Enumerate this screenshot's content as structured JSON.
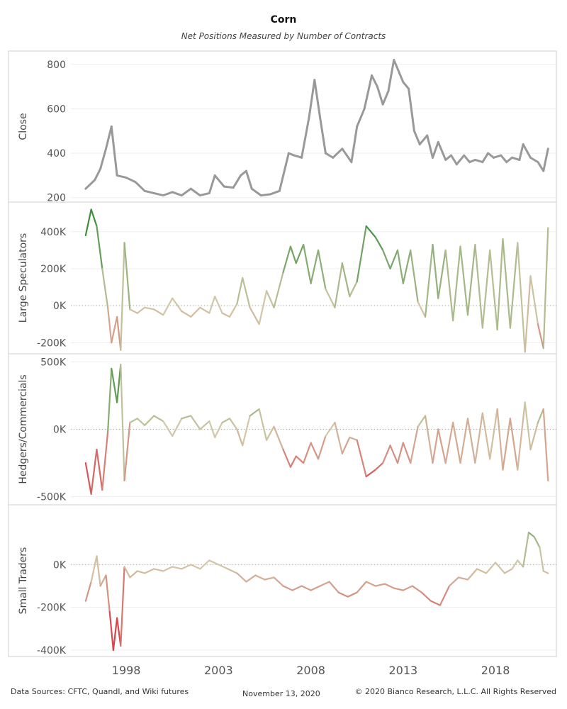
{
  "title": "Corn",
  "subtitle": "Net Positions Measured by Number of Contracts",
  "footer": {
    "sources": "Data Sources: CFTC, Quandl, and Wiki futures",
    "date": "November 13, 2020",
    "copyright": "© 2020 Bianco Research, L.L.C. All Rights Reserved"
  },
  "colors": {
    "close": "#999999",
    "positive": "#3d8f3d",
    "negative": "#d9414a",
    "neutral": "#d2c9a8",
    "grid": "#eeeeee"
  },
  "chart_data": [
    {
      "type": "line",
      "ylabel": "Close",
      "ylim": [
        180,
        860
      ],
      "yticks": [
        200,
        400,
        600,
        800
      ],
      "ytick_labels": [
        "200",
        "400",
        "600",
        "800"
      ],
      "zero_line": false,
      "color_mode": "solid",
      "x": [
        1995.8,
        1996.3,
        1996.6,
        1996.9,
        1997.2,
        1997.5,
        1998.0,
        1998.5,
        1999.0,
        1999.5,
        2000.0,
        2000.5,
        2001.0,
        2001.5,
        2002.0,
        2002.5,
        2002.8,
        2003.3,
        2003.8,
        2004.2,
        2004.5,
        2004.8,
        2005.3,
        2005.8,
        2006.3,
        2006.8,
        2007.1,
        2007.5,
        2007.9,
        2008.2,
        2008.5,
        2008.8,
        2009.2,
        2009.7,
        2010.2,
        2010.5,
        2010.9,
        2011.3,
        2011.6,
        2011.9,
        2012.2,
        2012.5,
        2012.8,
        2013.0,
        2013.3,
        2013.6,
        2013.9,
        2014.3,
        2014.6,
        2014.9,
        2015.3,
        2015.6,
        2015.9,
        2016.3,
        2016.6,
        2016.9,
        2017.3,
        2017.6,
        2017.9,
        2018.3,
        2018.6,
        2018.9,
        2019.3,
        2019.5,
        2019.9,
        2020.3,
        2020.6,
        2020.85
      ],
      "y": [
        240,
        280,
        330,
        420,
        520,
        300,
        290,
        270,
        230,
        220,
        210,
        225,
        210,
        240,
        210,
        220,
        300,
        250,
        245,
        300,
        320,
        240,
        210,
        215,
        230,
        400,
        390,
        380,
        560,
        730,
        560,
        400,
        380,
        420,
        360,
        520,
        600,
        750,
        700,
        620,
        680,
        820,
        760,
        720,
        690,
        500,
        440,
        480,
        380,
        450,
        370,
        390,
        350,
        390,
        360,
        370,
        360,
        400,
        380,
        390,
        360,
        380,
        370,
        440,
        380,
        360,
        320,
        420
      ]
    },
    {
      "type": "line",
      "ylabel": "Large Speculators",
      "ylim": [
        -260000,
        560000
      ],
      "yticks": [
        -200000,
        0,
        200000,
        400000
      ],
      "ytick_labels": [
        "-200K",
        "0K",
        "200K",
        "400K"
      ],
      "zero_line": true,
      "color_mode": "diverging",
      "x": [
        1995.8,
        1996.1,
        1996.4,
        1996.7,
        1997.0,
        1997.2,
        1997.5,
        1997.7,
        1997.9,
        1998.2,
        1998.6,
        1999.0,
        1999.5,
        2000.0,
        2000.5,
        2001.0,
        2001.5,
        2002.0,
        2002.5,
        2002.8,
        2003.2,
        2003.6,
        2004.0,
        2004.3,
        2004.7,
        2005.2,
        2005.6,
        2006.0,
        2006.5,
        2006.9,
        2007.2,
        2007.6,
        2008.0,
        2008.4,
        2008.8,
        2009.3,
        2009.7,
        2010.1,
        2010.5,
        2011.0,
        2011.5,
        2011.9,
        2012.3,
        2012.7,
        2013.0,
        2013.4,
        2013.8,
        2014.2,
        2014.6,
        2014.9,
        2015.3,
        2015.7,
        2016.1,
        2016.5,
        2016.9,
        2017.3,
        2017.7,
        2018.1,
        2018.4,
        2018.8,
        2019.2,
        2019.6,
        2019.9,
        2020.3,
        2020.6,
        2020.85
      ],
      "y": [
        380000,
        520000,
        430000,
        200000,
        -10000,
        -200000,
        -60000,
        -240000,
        340000,
        -20000,
        -40000,
        -10000,
        -20000,
        -50000,
        40000,
        -30000,
        -60000,
        -10000,
        -40000,
        50000,
        -40000,
        -60000,
        10000,
        150000,
        -10000,
        -100000,
        80000,
        -10000,
        180000,
        320000,
        230000,
        330000,
        120000,
        300000,
        90000,
        -10000,
        230000,
        50000,
        130000,
        430000,
        370000,
        300000,
        200000,
        300000,
        120000,
        300000,
        20000,
        -60000,
        330000,
        40000,
        300000,
        -80000,
        320000,
        -50000,
        330000,
        -120000,
        300000,
        -130000,
        360000,
        -120000,
        340000,
        -250000,
        160000,
        -100000,
        -230000,
        420000
      ]
    },
    {
      "type": "line",
      "ylabel": "Hedgers/Commercials",
      "ylim": [
        -560000,
        560000
      ],
      "yticks": [
        -500000,
        0,
        500000
      ],
      "ytick_labels": [
        "-500K",
        "0K",
        "500K"
      ],
      "zero_line": true,
      "color_mode": "diverging",
      "x": [
        1995.8,
        1996.1,
        1996.4,
        1996.7,
        1997.0,
        1997.2,
        1997.5,
        1997.7,
        1997.9,
        1998.2,
        1998.6,
        1999.0,
        1999.5,
        2000.0,
        2000.5,
        2001.0,
        2001.5,
        2002.0,
        2002.5,
        2002.8,
        2003.2,
        2003.6,
        2004.0,
        2004.3,
        2004.7,
        2005.2,
        2005.6,
        2006.0,
        2006.5,
        2006.9,
        2007.2,
        2007.6,
        2008.0,
        2008.4,
        2008.8,
        2009.3,
        2009.7,
        2010.1,
        2010.5,
        2011.0,
        2011.5,
        2011.9,
        2012.3,
        2012.7,
        2013.0,
        2013.4,
        2013.8,
        2014.2,
        2014.6,
        2014.9,
        2015.3,
        2015.7,
        2016.1,
        2016.5,
        2016.9,
        2017.3,
        2017.7,
        2018.1,
        2018.4,
        2018.8,
        2019.2,
        2019.6,
        2019.9,
        2020.3,
        2020.6,
        2020.85
      ],
      "y": [
        -250000,
        -480000,
        -150000,
        -450000,
        -20000,
        450000,
        200000,
        480000,
        -380000,
        50000,
        80000,
        30000,
        100000,
        60000,
        -50000,
        80000,
        100000,
        0,
        60000,
        -60000,
        50000,
        80000,
        0,
        -120000,
        100000,
        150000,
        -80000,
        20000,
        -150000,
        -280000,
        -200000,
        -250000,
        -100000,
        -220000,
        -50000,
        50000,
        -180000,
        -60000,
        -80000,
        -350000,
        -300000,
        -250000,
        -120000,
        -250000,
        -100000,
        -250000,
        20000,
        100000,
        -250000,
        0,
        -250000,
        50000,
        -250000,
        80000,
        -250000,
        120000,
        -220000,
        150000,
        -300000,
        80000,
        -300000,
        200000,
        -150000,
        50000,
        150000,
        -380000
      ]
    },
    {
      "type": "line",
      "ylabel": "Small Traders",
      "ylim": [
        -430000,
        280000
      ],
      "yticks": [
        -400000,
        -200000,
        0
      ],
      "ytick_labels": [
        "-400K",
        "-200K",
        "0K"
      ],
      "zero_line": true,
      "color_mode": "diverging",
      "x": [
        1995.8,
        1996.1,
        1996.4,
        1996.6,
        1996.9,
        1997.1,
        1997.3,
        1997.5,
        1997.7,
        1997.9,
        1998.2,
        1998.6,
        1999.0,
        1999.5,
        2000.0,
        2000.5,
        2001.0,
        2001.5,
        2002.0,
        2002.5,
        2003.0,
        2003.5,
        2004.0,
        2004.5,
        2005.0,
        2005.5,
        2006.0,
        2006.5,
        2007.0,
        2007.5,
        2008.0,
        2008.5,
        2009.0,
        2009.5,
        2010.0,
        2010.5,
        2011.0,
        2011.5,
        2012.0,
        2012.5,
        2013.0,
        2013.5,
        2014.0,
        2014.5,
        2015.0,
        2015.5,
        2016.0,
        2016.5,
        2017.0,
        2017.5,
        2018.0,
        2018.5,
        2018.9,
        2019.2,
        2019.5,
        2019.8,
        2020.1,
        2020.4,
        2020.6,
        2020.85
      ],
      "y": [
        -170000,
        -80000,
        40000,
        -100000,
        -50000,
        -220000,
        -400000,
        -250000,
        -380000,
        -10000,
        -60000,
        -30000,
        -40000,
        -20000,
        -30000,
        -10000,
        -20000,
        0,
        -20000,
        20000,
        0,
        -20000,
        -40000,
        -80000,
        -50000,
        -70000,
        -60000,
        -100000,
        -120000,
        -100000,
        -120000,
        -100000,
        -80000,
        -130000,
        -150000,
        -130000,
        -80000,
        -100000,
        -90000,
        -110000,
        -120000,
        -100000,
        -130000,
        -170000,
        -190000,
        -100000,
        -60000,
        -70000,
        -20000,
        -40000,
        10000,
        -40000,
        -20000,
        20000,
        -10000,
        150000,
        130000,
        80000,
        -30000,
        -40000
      ]
    }
  ],
  "x_axis": {
    "ticks": [
      1998,
      2003,
      2008,
      2013,
      2018
    ],
    "tick_labels": [
      "1998",
      "2003",
      "2008",
      "2013",
      "2018"
    ],
    "xlim": [
      1995.0,
      2021.3
    ]
  }
}
